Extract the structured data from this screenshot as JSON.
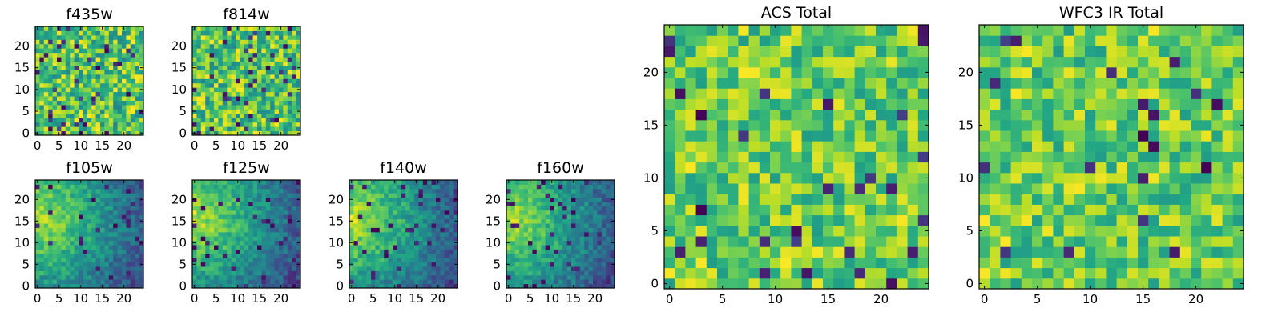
{
  "chart_data": [
    {
      "type": "heatmap",
      "id": "f435w",
      "title": "f435w",
      "grid_size": 25,
      "xticks": [
        0,
        5,
        10,
        15,
        20
      ],
      "yticks": [
        0,
        5,
        10,
        15,
        20
      ],
      "pattern": "noise",
      "colormap": "viridis",
      "value_range": [
        0,
        1
      ]
    },
    {
      "type": "heatmap",
      "id": "f814w",
      "title": "f814w",
      "grid_size": 25,
      "xticks": [
        0,
        5,
        10,
        15,
        20
      ],
      "yticks": [
        0,
        5,
        10,
        15,
        20
      ],
      "pattern": "noise",
      "colormap": "viridis",
      "value_range": [
        0,
        1
      ]
    },
    {
      "type": "heatmap",
      "id": "f105w",
      "title": "f105w",
      "grid_size": 25,
      "xticks": [
        0,
        5,
        10,
        15,
        20
      ],
      "yticks": [
        0,
        5,
        10,
        15,
        20
      ],
      "pattern": "gradient-bright-upper-left",
      "colormap": "viridis",
      "value_range": [
        0,
        1
      ]
    },
    {
      "type": "heatmap",
      "id": "f125w",
      "title": "f125w",
      "grid_size": 25,
      "xticks": [
        0,
        5,
        10,
        15,
        20
      ],
      "yticks": [
        0,
        5,
        10,
        15,
        20
      ],
      "pattern": "gradient-bright-upper-left",
      "colormap": "viridis",
      "value_range": [
        0,
        1
      ]
    },
    {
      "type": "heatmap",
      "id": "f140w",
      "title": "f140w",
      "grid_size": 25,
      "xticks": [
        0,
        5,
        10,
        15,
        20
      ],
      "yticks": [
        0,
        5,
        10,
        15,
        20
      ],
      "pattern": "gradient-bright-upper-left",
      "colormap": "viridis",
      "value_range": [
        0,
        1
      ]
    },
    {
      "type": "heatmap",
      "id": "f160w",
      "title": "f160w",
      "grid_size": 25,
      "xticks": [
        0,
        5,
        10,
        15,
        20
      ],
      "yticks": [
        0,
        5,
        10,
        15,
        20
      ],
      "pattern": "gradient-bright-upper-left",
      "colormap": "viridis",
      "value_range": [
        0,
        1
      ]
    },
    {
      "type": "heatmap",
      "id": "acs-total",
      "title": "ACS Total",
      "grid_size": 25,
      "xticks": [
        0,
        5,
        10,
        15,
        20
      ],
      "yticks": [
        0,
        5,
        10,
        15,
        20
      ],
      "pattern": "noise-bright",
      "colormap": "viridis",
      "value_range": [
        0,
        1
      ]
    },
    {
      "type": "heatmap",
      "id": "wfc3-ir-total",
      "title": "WFC3 IR Total",
      "grid_size": 25,
      "xticks": [
        0,
        5,
        10,
        15,
        20
      ],
      "yticks": [
        0,
        5,
        10,
        15,
        20
      ],
      "pattern": "noise-bright",
      "colormap": "viridis",
      "value_range": [
        0,
        1
      ]
    }
  ]
}
